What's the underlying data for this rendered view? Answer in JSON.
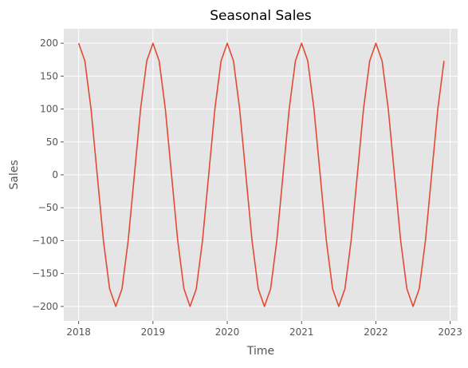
{
  "chart_data": {
    "type": "line",
    "title": "Seasonal Sales",
    "xlabel": "Time",
    "ylabel": "Sales",
    "x_axis_type": "time",
    "x_range": [
      2017.8,
      2023.1
    ],
    "ylim": [
      -222,
      222
    ],
    "x_ticks": [
      {
        "value": 2018,
        "label": "2018"
      },
      {
        "value": 2019,
        "label": "2019"
      },
      {
        "value": 2020,
        "label": "2020"
      },
      {
        "value": 2021,
        "label": "2021"
      },
      {
        "value": 2022,
        "label": "2022"
      },
      {
        "value": 2023,
        "label": "2023"
      }
    ],
    "y_ticks": [
      {
        "value": 200,
        "label": "200"
      },
      {
        "value": 150,
        "label": "150"
      },
      {
        "value": 100,
        "label": "100"
      },
      {
        "value": 50,
        "label": "50"
      },
      {
        "value": 0,
        "label": "0"
      },
      {
        "value": -50,
        "label": "−50"
      },
      {
        "value": -100,
        "label": "−100"
      },
      {
        "value": -150,
        "label": "−150"
      },
      {
        "value": -200,
        "label": "−200"
      }
    ],
    "grid": true,
    "legend": "none",
    "background_color": "#e5e5e5",
    "series": [
      {
        "color": "#e24a33",
        "x": [
          "2018-01",
          "2018-02",
          "2018-03",
          "2018-04",
          "2018-05",
          "2018-06",
          "2018-07",
          "2018-08",
          "2018-09",
          "2018-10",
          "2018-11",
          "2018-12",
          "2019-01",
          "2019-02",
          "2019-03",
          "2019-04",
          "2019-05",
          "2019-06",
          "2019-07",
          "2019-08",
          "2019-09",
          "2019-10",
          "2019-11",
          "2019-12",
          "2020-01",
          "2020-02",
          "2020-03",
          "2020-04",
          "2020-05",
          "2020-06",
          "2020-07",
          "2020-08",
          "2020-09",
          "2020-10",
          "2020-11",
          "2020-12",
          "2021-01",
          "2021-02",
          "2021-03",
          "2021-04",
          "2021-05",
          "2021-06",
          "2021-07",
          "2021-08",
          "2021-09",
          "2021-10",
          "2021-11",
          "2021-12",
          "2022-01",
          "2022-02",
          "2022-03",
          "2022-04",
          "2022-05",
          "2022-06",
          "2022-07",
          "2022-08",
          "2022-09",
          "2022-10",
          "2022-11",
          "2022-12"
        ],
        "values": [
          200,
          173.2,
          100,
          0,
          -100,
          -173.2,
          -200,
          -173.2,
          -100,
          0,
          100,
          173.2,
          200,
          173.2,
          100,
          0,
          -100,
          -173.2,
          -200,
          -173.2,
          -100,
          0,
          100,
          173.2,
          200,
          173.2,
          100,
          0,
          -100,
          -173.2,
          -200,
          -173.2,
          -100,
          0,
          100,
          173.2,
          200,
          173.2,
          100,
          0,
          -100,
          -173.2,
          -200,
          -173.2,
          -100,
          0,
          100,
          173.2,
          200,
          173.2,
          100,
          0,
          -100,
          -173.2,
          -200,
          -173.2,
          -100,
          0,
          100,
          173.2
        ]
      }
    ]
  }
}
